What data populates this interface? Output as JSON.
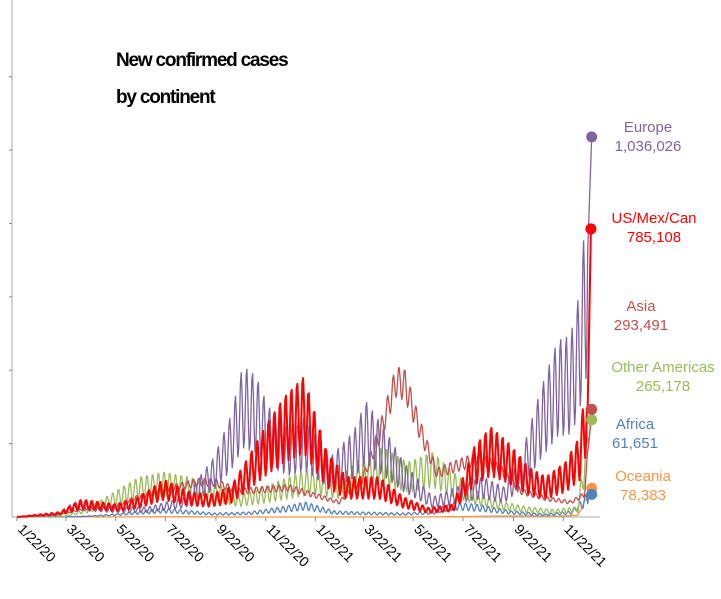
{
  "chart_data": {
    "type": "line",
    "title_lines": [
      "New confirmed cases",
      "by continent"
    ],
    "x_tick_labels": [
      "1/22/20",
      "3/22/20",
      "5/22/20",
      "7/22/20",
      "9/22/20",
      "11/22/20",
      "1/22/21",
      "3/22/21",
      "5/22/21",
      "7/22/21",
      "9/22/21",
      "11/22/21"
    ],
    "x_range": [
      "1/22/20",
      "12/31/21"
    ],
    "grid": false,
    "series": [
      {
        "name": "Europe",
        "color": "#8064a2",
        "end_value": 1036026,
        "end_value_label": "1,036,026",
        "anchors": [
          [
            "1/22/20",
            0
          ],
          [
            "3/10/20",
            5000
          ],
          [
            "4/1/20",
            30000
          ],
          [
            "5/15/20",
            20000
          ],
          [
            "7/1/20",
            20000
          ],
          [
            "8/15/20",
            40000
          ],
          [
            "9/20/20",
            120000
          ],
          [
            "10/10/20",
            200000
          ],
          [
            "10/25/20",
            300000
          ],
          [
            "11/10/20",
            280000
          ],
          [
            "11/25/20",
            220000
          ],
          [
            "12/20/20",
            180000
          ],
          [
            "1/10/21",
            200000
          ],
          [
            "2/10/21",
            120000
          ],
          [
            "3/10/21",
            170000
          ],
          [
            "3/25/21",
            230000
          ],
          [
            "4/15/21",
            180000
          ],
          [
            "5/10/21",
            110000
          ],
          [
            "6/15/21",
            40000
          ],
          [
            "7/15/21",
            60000
          ],
          [
            "8/15/21",
            80000
          ],
          [
            "9/10/21",
            60000
          ],
          [
            "10/1/21",
            120000
          ],
          [
            "10/25/21",
            250000
          ],
          [
            "11/15/21",
            350000
          ],
          [
            "12/1/21",
            360000
          ],
          [
            "12/10/21",
            430000
          ],
          [
            "12/20/21",
            600000
          ],
          [
            "12/27/21",
            1036026
          ]
        ]
      },
      {
        "name": "US/Mex/Can",
        "color": "#ff0000",
        "end_value": 785108,
        "end_value_label": "785,108",
        "anchors": [
          [
            "1/22/20",
            0
          ],
          [
            "3/15/20",
            10000
          ],
          [
            "4/10/20",
            35000
          ],
          [
            "5/25/20",
            25000
          ],
          [
            "6/20/20",
            40000
          ],
          [
            "7/20/20",
            75000
          ],
          [
            "8/20/20",
            50000
          ],
          [
            "9/15/20",
            45000
          ],
          [
            "10/10/20",
            60000
          ],
          [
            "11/1/20",
            120000
          ],
          [
            "11/25/20",
            190000
          ],
          [
            "12/15/20",
            240000
          ],
          [
            "1/8/21",
            280000
          ],
          [
            "2/5/21",
            130000
          ],
          [
            "3/1/21",
            80000
          ],
          [
            "4/10/21",
            80000
          ],
          [
            "5/10/21",
            40000
          ],
          [
            "6/10/21",
            18000
          ],
          [
            "7/10/21",
            25000
          ],
          [
            "8/5/21",
            140000
          ],
          [
            "8/25/21",
            180000
          ],
          [
            "9/15/21",
            150000
          ],
          [
            "10/10/21",
            100000
          ],
          [
            "11/1/21",
            80000
          ],
          [
            "11/25/21",
            110000
          ],
          [
            "12/12/21",
            160000
          ],
          [
            "12/22/21",
            300000
          ],
          [
            "12/26/21",
            785108
          ]
        ]
      },
      {
        "name": "Asia",
        "color": "#c0504d",
        "end_value": 293491,
        "end_value_label": "293,491",
        "anchors": [
          [
            "1/22/20",
            0
          ],
          [
            "2/10/20",
            3000
          ],
          [
            "3/10/20",
            5000
          ],
          [
            "4/10/20",
            20000
          ],
          [
            "5/20/20",
            30000
          ],
          [
            "6/20/20",
            55000
          ],
          [
            "8/1/20",
            80000
          ],
          [
            "9/1/20",
            95000
          ],
          [
            "9/20/20",
            95000
          ],
          [
            "10/20/20",
            70000
          ],
          [
            "11/20/20",
            75000
          ],
          [
            "12/20/20",
            80000
          ],
          [
            "1/20/21",
            60000
          ],
          [
            "2/20/21",
            40000
          ],
          [
            "3/20/21",
            100000
          ],
          [
            "4/10/21",
            220000
          ],
          [
            "5/1/21",
            370000
          ],
          [
            "5/12/21",
            360000
          ],
          [
            "5/30/21",
            240000
          ],
          [
            "6/20/21",
            120000
          ],
          [
            "7/15/21",
            140000
          ],
          [
            "8/10/21",
            160000
          ],
          [
            "9/5/21",
            130000
          ],
          [
            "10/1/21",
            70000
          ],
          [
            "11/1/21",
            50000
          ],
          [
            "12/1/21",
            40000
          ],
          [
            "12/18/21",
            60000
          ],
          [
            "12/27/21",
            293491
          ]
        ]
      },
      {
        "name": "Other Americas",
        "color": "#9bbb59",
        "end_value": 265178,
        "end_value_label": "265,178",
        "anchors": [
          [
            "1/22/20",
            0
          ],
          [
            "3/20/20",
            2000
          ],
          [
            "4/20/20",
            20000
          ],
          [
            "5/20/20",
            50000
          ],
          [
            "6/20/20",
            80000
          ],
          [
            "7/20/20",
            90000
          ],
          [
            "8/20/20",
            80000
          ],
          [
            "9/20/20",
            70000
          ],
          [
            "10/20/20",
            45000
          ],
          [
            "11/20/20",
            60000
          ],
          [
            "12/20/20",
            80000
          ],
          [
            "1/20/21",
            100000
          ],
          [
            "2/20/21",
            80000
          ],
          [
            "3/20/21",
            120000
          ],
          [
            "4/15/21",
            140000
          ],
          [
            "5/15/21",
            110000
          ],
          [
            "6/15/21",
            130000
          ],
          [
            "7/10/21",
            90000
          ],
          [
            "8/10/21",
            50000
          ],
          [
            "9/10/21",
            30000
          ],
          [
            "10/10/21",
            20000
          ],
          [
            "11/10/21",
            15000
          ],
          [
            "12/10/21",
            20000
          ],
          [
            "12/27/21",
            265178
          ]
        ]
      },
      {
        "name": "Africa",
        "color": "#4f81bd",
        "end_value": 61651,
        "end_value_label": "61,651",
        "anchors": [
          [
            "1/22/20",
            0
          ],
          [
            "4/1/20",
            500
          ],
          [
            "5/15/20",
            5000
          ],
          [
            "7/20/20",
            18000
          ],
          [
            "9/20/20",
            8000
          ],
          [
            "11/1/20",
            10000
          ],
          [
            "12/10/20",
            20000
          ],
          [
            "1/10/21",
            30000
          ],
          [
            "2/15/21",
            12000
          ],
          [
            "3/20/21",
            10000
          ],
          [
            "5/10/21",
            8000
          ],
          [
            "6/15/21",
            12000
          ],
          [
            "7/10/21",
            30000
          ],
          [
            "8/10/21",
            25000
          ],
          [
            "9/20/21",
            12000
          ],
          [
            "11/1/21",
            6000
          ],
          [
            "12/1/21",
            12000
          ],
          [
            "12/15/21",
            35000
          ],
          [
            "12/27/21",
            61651
          ]
        ]
      },
      {
        "name": "Oceania",
        "color": "#f79646",
        "end_value": 78383,
        "end_value_label": "78,383",
        "anchors": [
          [
            "1/22/20",
            0
          ],
          [
            "3/25/20",
            600
          ],
          [
            "5/1/20",
            50
          ],
          [
            "7/15/20",
            500
          ],
          [
            "8/10/20",
            700
          ],
          [
            "10/1/20",
            50
          ],
          [
            "6/1/21",
            30
          ],
          [
            "7/20/21",
            1000
          ],
          [
            "9/1/21",
            2500
          ],
          [
            "10/15/21",
            3000
          ],
          [
            "11/15/21",
            2000
          ],
          [
            "12/10/21",
            5000
          ],
          [
            "12/27/21",
            78383
          ]
        ]
      }
    ]
  }
}
